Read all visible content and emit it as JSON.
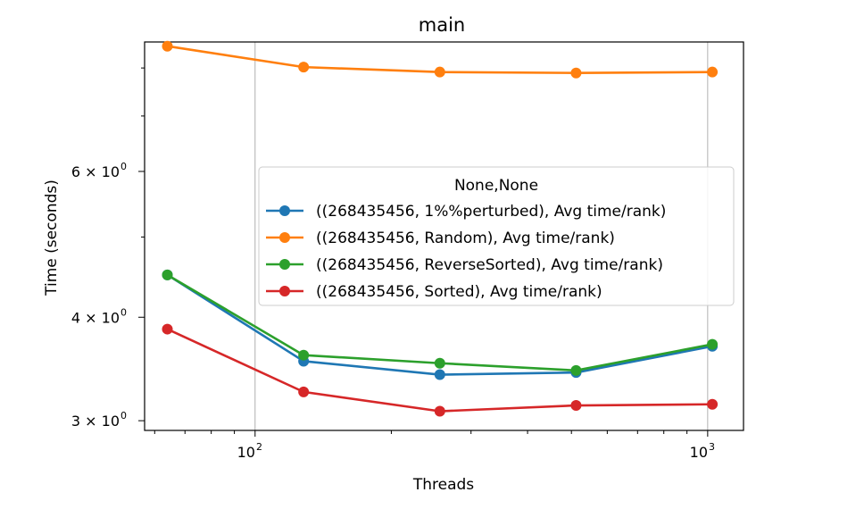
{
  "chart_data": {
    "type": "line",
    "title": "main",
    "xlabel": "Threads",
    "ylabel": "Time (seconds)",
    "xscale": "log",
    "yscale": "log",
    "xlim": [
      57,
      1200
    ],
    "ylim": [
      2.92,
      8.6
    ],
    "grid": "x-major",
    "legend_placement": "center-right",
    "legend_title": "None,None",
    "x": [
      64,
      128,
      256,
      512,
      1024
    ],
    "x_ticks": [
      {
        "value": 100,
        "label": "10",
        "exp": "2"
      },
      {
        "value": 1000,
        "label": "10",
        "exp": "3"
      }
    ],
    "y_ticks": [
      {
        "value": 3,
        "label": "3 × 10",
        "exp": "0"
      },
      {
        "value": 4,
        "label": "4 × 10",
        "exp": "0"
      },
      {
        "value": 6,
        "label": "6 × 10",
        "exp": "0"
      }
    ],
    "series": [
      {
        "name": "((268435456, 1%%perturbed), Avg time/rank)",
        "color": "#1f77b4",
        "values": [
          4.5,
          3.54,
          3.41,
          3.43,
          3.69
        ]
      },
      {
        "name": "((268435456, Random), Avg time/rank)",
        "color": "#ff7f0e",
        "values": [
          8.5,
          8.02,
          7.91,
          7.89,
          7.91
        ]
      },
      {
        "name": "((268435456, ReverseSorted), Avg time/rank)",
        "color": "#2ca02c",
        "values": [
          4.5,
          3.6,
          3.52,
          3.45,
          3.71
        ]
      },
      {
        "name": "((268435456, Sorted), Avg time/rank)",
        "color": "#d62728",
        "values": [
          3.87,
          3.25,
          3.08,
          3.13,
          3.14
        ]
      }
    ]
  }
}
